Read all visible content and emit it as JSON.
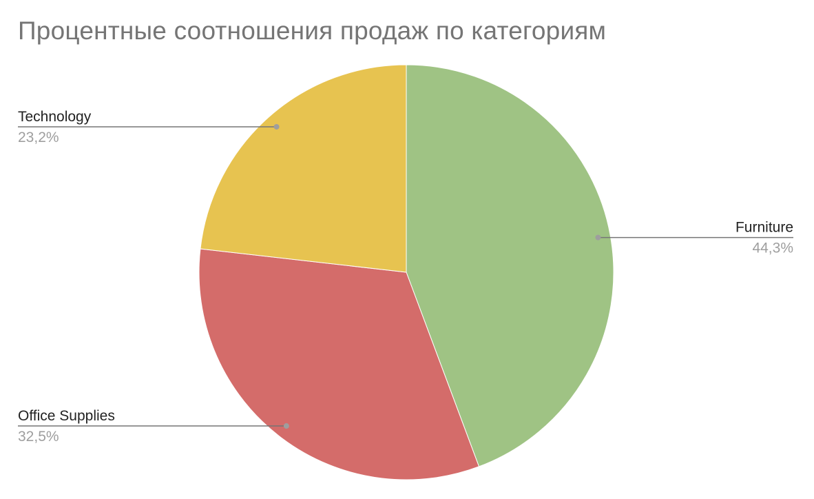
{
  "chart_data": {
    "type": "pie",
    "title": "Процентные соотношения продаж по категориям",
    "slices": [
      {
        "label": "Furniture",
        "value": 44.3,
        "display": "44,3%",
        "color": "#9fc384",
        "label_side": "right"
      },
      {
        "label": "Office Supplies",
        "value": 32.5,
        "display": "32,5%",
        "color": "#d46c6a",
        "label_side": "left"
      },
      {
        "label": "Technology",
        "value": 23.2,
        "display": "23,2%",
        "color": "#e7c350",
        "label_side": "left"
      }
    ],
    "start": "12 o'clock",
    "direction": "clockwise",
    "legend": "none"
  }
}
